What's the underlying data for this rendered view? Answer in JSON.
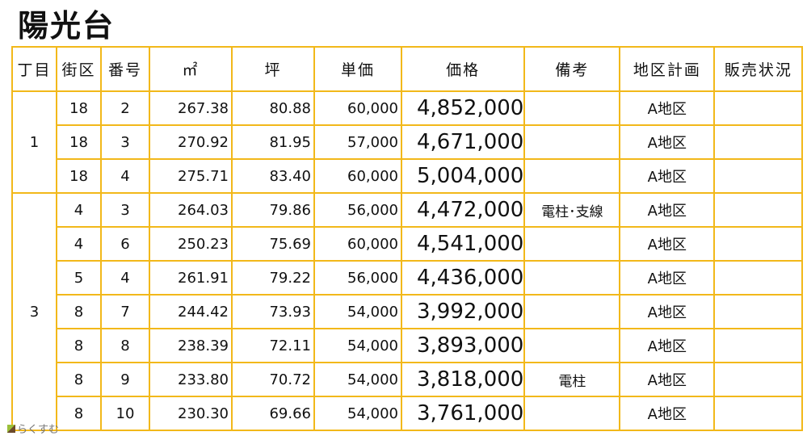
{
  "title": "陽光台",
  "headers": [
    "丁目",
    "街区",
    "番号",
    "㎡",
    "坪",
    "単価",
    "価格",
    "備考",
    "地区計画",
    "販売状況"
  ],
  "groups": [
    {
      "chome": "1",
      "rows": [
        {
          "block": "18",
          "lot": "2",
          "sqm": "267.38",
          "tsubo": "80.88",
          "unit": "60,000",
          "price": "4,852,000",
          "note": "",
          "plan": "A地区",
          "status": ""
        },
        {
          "block": "18",
          "lot": "3",
          "sqm": "270.92",
          "tsubo": "81.95",
          "unit": "57,000",
          "price": "4,671,000",
          "note": "",
          "plan": "A地区",
          "status": ""
        },
        {
          "block": "18",
          "lot": "4",
          "sqm": "275.71",
          "tsubo": "83.40",
          "unit": "60,000",
          "price": "5,004,000",
          "note": "",
          "plan": "A地区",
          "status": ""
        }
      ]
    },
    {
      "chome": "3",
      "rows": [
        {
          "block": "4",
          "lot": "3",
          "sqm": "264.03",
          "tsubo": "79.86",
          "unit": "56,000",
          "price": "4,472,000",
          "note": "電柱･支線",
          "plan": "A地区",
          "status": ""
        },
        {
          "block": "4",
          "lot": "6",
          "sqm": "250.23",
          "tsubo": "75.69",
          "unit": "60,000",
          "price": "4,541,000",
          "note": "",
          "plan": "A地区",
          "status": ""
        },
        {
          "block": "5",
          "lot": "4",
          "sqm": "261.91",
          "tsubo": "79.22",
          "unit": "56,000",
          "price": "4,436,000",
          "note": "",
          "plan": "A地区",
          "status": ""
        },
        {
          "block": "8",
          "lot": "7",
          "sqm": "244.42",
          "tsubo": "73.93",
          "unit": "54,000",
          "price": "3,992,000",
          "note": "",
          "plan": "A地区",
          "status": ""
        },
        {
          "block": "8",
          "lot": "8",
          "sqm": "238.39",
          "tsubo": "72.11",
          "unit": "54,000",
          "price": "3,893,000",
          "note": "",
          "plan": "A地区",
          "status": ""
        },
        {
          "block": "8",
          "lot": "9",
          "sqm": "233.80",
          "tsubo": "70.72",
          "unit": "54,000",
          "price": "3,818,000",
          "note": "電柱",
          "plan": "A地区",
          "status": ""
        },
        {
          "block": "8",
          "lot": "10",
          "sqm": "230.30",
          "tsubo": "69.66",
          "unit": "54,000",
          "price": "3,761,000",
          "note": "",
          "plan": "A地区",
          "status": ""
        }
      ]
    }
  ],
  "logo_text": "らくすむ",
  "border_color": "#F2B81A"
}
